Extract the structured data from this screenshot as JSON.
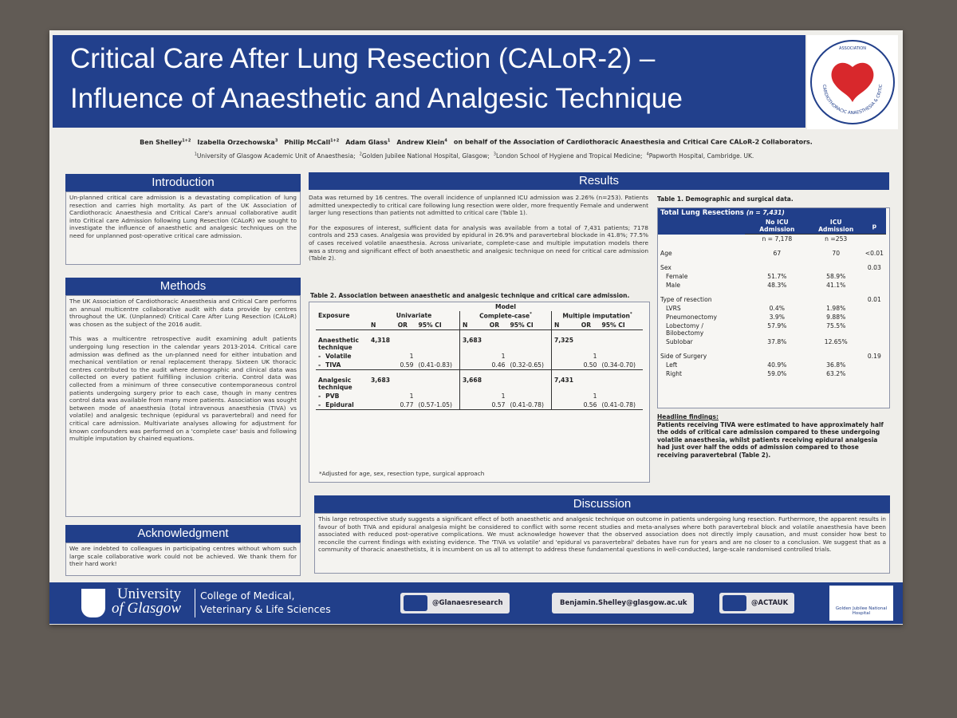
{
  "header": {
    "title_line1": "Critical Care After Lung Resection (CALoR-2) –",
    "title_line2": "Influence of Anaesthetic and Analgesic Technique",
    "authors": [
      {
        "name": "Ben Shelley",
        "sup": "1+2"
      },
      {
        "name": "Izabella Orzechowska",
        "sup": "3"
      },
      {
        "name": "Philip McCall",
        "sup": "1+2"
      },
      {
        "name": "Adam Glass",
        "sup": "1"
      },
      {
        "name": "Andrew Klein",
        "sup": "4"
      }
    ],
    "authors_tail": "on behalf of the Association of Cardiothoracic Anaesthesia and Critical Care CALoR-2 Collaborators.",
    "affiliations": [
      {
        "sup": "1",
        "text": "University of Glasgow Academic Unit of Anaesthesia;"
      },
      {
        "sup": "2",
        "text": "Golden Jubilee National Hospital, Glasgow;"
      },
      {
        "sup": "3",
        "text": "London School of Hygiene and Tropical Medicine;"
      },
      {
        "sup": "4",
        "text": "Papworth Hospital, Cambridge. UK."
      }
    ]
  },
  "logo": {
    "top": "ASSOCIATION",
    "ring": "CARDIOTHORACIC ANAESTHESIA & CRITICAL CARE"
  },
  "introduction": {
    "title": "Introduction",
    "text": "Un-planned critical care admission is a devastating complication of lung resection and carries high mortality. As part of the UK Association of Cardiothoracic Anaesthesia and Critical Care's annual collaborative audit into Critical care Admission following Lung Resection (CALoR) we sought to investigate the influence of anaesthetic and analgesic techniques on the need for unplanned post-operative critical care admission."
  },
  "methods": {
    "title": "Methods",
    "paragraphs": [
      "The UK Association of Cardiothoracic Anaesthesia and Critical Care performs an annual multicentre collaborative audit with data provide by centres throughout the UK. (Unplanned) Critical Care After Lung Resection (CALoR) was chosen as the subject of the 2016 audit.",
      "This was a multicentre retrospective audit examining adult patients undergoing lung resection in the calendar years 2013-2014. Critical care admission was defined as the un-planned need for either intubation and mechanical ventilation or renal replacement therapy. Sixteen UK thoracic centres contributed to the audit where demographic and clinical data was collected on every patient fulfilling inclusion criteria. Control data was collected from a minimum of three consecutive contemporaneous control patients undergoing surgery prior to each case, though in many centres control data was available from many more patients. Association was sought between mode of anaesthesia (total intravenous anaesthesia (TIVA) vs volatile) and analgesic technique (epidural vs paravertebral) and need for critical care admission. Multivariate analyses allowing for adjustment for known confounders was performed on a 'complete case' basis and following multiple imputation by chained equations."
    ]
  },
  "acknowledgment": {
    "title": "Acknowledgment",
    "text": "We are indebted to colleagues in participating centres without whom such large scale collaborative work could not be achieved. We thank them for their hard work!"
  },
  "results": {
    "title": "Results",
    "paragraphs": [
      "Data was returned by 16 centres. The overall incidence of unplanned ICU admission was 2.26% (n=253). Patients admitted unexpectedly to critical care following lung resection were older, more frequently Female and underwent larger lung resections than patients not admitted to critical care (Table 1).",
      "For the exposures of interest, sufficient data for analysis was available from a total of 7,431 patients; 7178 controls and 253 cases. Analgesia was provided by epidural in 26.9% and paravertebral blockade in 41.8%; 77.5% of cases received volatile anaesthesia. Across univariate, complete-case and multiple imputation models there was a strong and significant effect of both anaesthetic and analgesic technique on need for critical care admission (Table 2)."
    ]
  },
  "table2": {
    "caption": "Table 2. Association between anaesthetic and analgesic technique and critical care admission.",
    "exposure": "Exposure",
    "model": "Model",
    "models": [
      {
        "text": "Univariate"
      },
      {
        "text": "Complete-case",
        "sup": "*"
      },
      {
        "text": "Multiple imputation",
        "sup": "*"
      }
    ],
    "subcolumns": [
      "N",
      "OR",
      "95% CI"
    ],
    "groups": [
      {
        "label": "Anaesthetic technique",
        "n": [
          "4,318",
          "3,683",
          "7,325"
        ],
        "rows": [
          {
            "label": "Volatile",
            "or": [
              "1",
              "1",
              "1"
            ]
          },
          {
            "label": "TIVA",
            "or": [
              "0.59",
              "0.46",
              "0.50"
            ],
            "ci": [
              "(0.41-0.83)",
              "(0.32-0.65)",
              "(0.34-0.70)"
            ]
          }
        ]
      },
      {
        "label": "Analgesic technique",
        "n": [
          "3,683",
          "3,668",
          "7,431"
        ],
        "rows": [
          {
            "label": "PVB",
            "or": [
              "1",
              "1",
              "1"
            ]
          },
          {
            "label": "Epidural",
            "or": [
              "0.77",
              "0.57",
              "0.56"
            ],
            "ci": [
              "(0.57-1.05)",
              "(0.41-0.78)",
              "(0.41-0.78)"
            ]
          }
        ]
      }
    ],
    "footnote": "*Adjusted for age, sex, resection type, surgical approach"
  },
  "table1": {
    "caption": "Table 1. Demographic and surgical data.",
    "title": "Total Lung Resections",
    "title_n": "(n = 7,431)",
    "columns": [
      "No ICU Admission",
      "ICU Admission",
      "p"
    ],
    "n_row": [
      "n = 7,178",
      "n =253"
    ],
    "sections": [
      {
        "label": "Age",
        "values": [
          "67",
          "70"
        ],
        "p": "<0.01"
      },
      {
        "label": "Sex",
        "p": "0.03",
        "items": [
          {
            "label": "Female",
            "values": [
              "51.7%",
              "58.9%"
            ]
          },
          {
            "label": "Male",
            "values": [
              "48.3%",
              "41.1%"
            ]
          }
        ]
      },
      {
        "label": "Type of resection",
        "p": "0.01",
        "items": [
          {
            "label": "LVRS",
            "values": [
              "0.4%",
              "1.98%"
            ]
          },
          {
            "label": "Pneumonectomy",
            "values": [
              "3.9%",
              "9.88%"
            ]
          },
          {
            "label": "Lobectomy / Bilobectomy",
            "values": [
              "57.9%",
              "75.5%"
            ]
          },
          {
            "label": "Sublobar",
            "values": [
              "37.8%",
              "12.65%"
            ]
          }
        ]
      },
      {
        "label": "Side of Surgery",
        "p": "0.19",
        "items": [
          {
            "label": "Left",
            "values": [
              "40.9%",
              "36.8%"
            ]
          },
          {
            "label": "Right",
            "values": [
              "59.0%",
              "63.2%"
            ]
          }
        ]
      }
    ]
  },
  "headline": {
    "title": "Headline findings:",
    "text": "Patients receiving TIVA were estimated to have approximately half the odds of critical care admission compared to these undergoing volatile anaesthesia, whilst patients receiving epidural analgesia had just over half the odds of admission compared to those receiving paravertebral (Table 2)."
  },
  "discussion": {
    "title": "Discussion",
    "text": "This large retrospective study suggests a significant effect of both anaesthetic and analgesic technique on outcome in patients undergoing lung resection. Furthermore, the apparent results in favour of both TIVA and epidural analgesia might be considered to conflict with some recent studies and meta-analyses where both paravertebral block and volatile anaesthesia have been associated with reduced post-operative complications. We must acknowledge however that the observed association does not directly imply causation, and must consider how best to reconcile the current findings with existing evidence. The 'TIVA vs volatile' and 'epidural vs paravertebral' debates have run for years and are no closer to a conclusion. We suggest that as a community of thoracic anaesthetists, it is incumbent on us all to attempt to address these fundamental questions in well-conducted, large-scale randomised controlled trials."
  },
  "footer": {
    "university": [
      "University",
      "of Glasgow"
    ],
    "college": [
      "College of Medical,",
      "Veterinary & Life Sciences"
    ],
    "twitter1": "@Glanaesresearch",
    "email": "Benjamin.Shelley@glasgow.ac.uk",
    "twitter2": "@ACTAUK",
    "hospital": "Golden Jubilee National Hospital"
  }
}
